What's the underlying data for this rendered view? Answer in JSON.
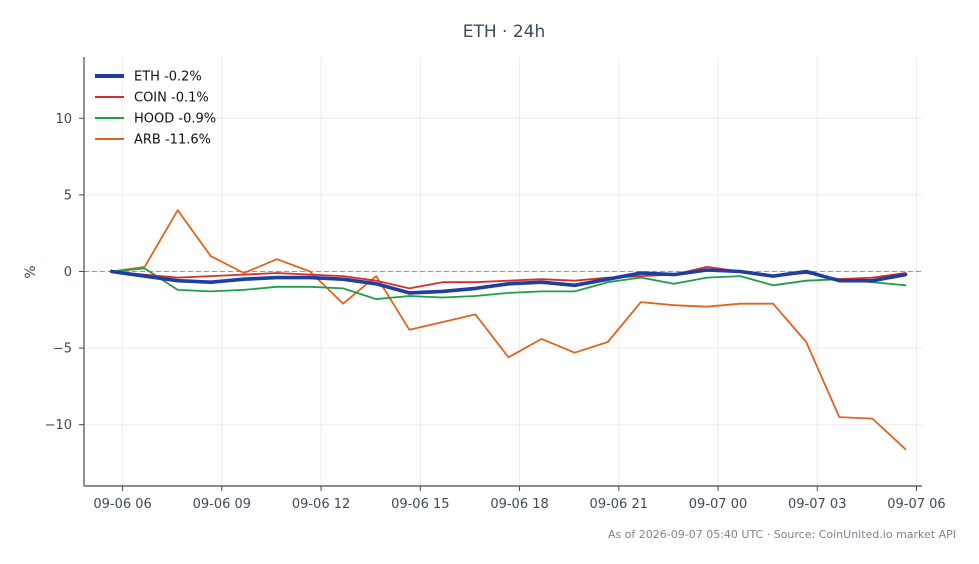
{
  "chart_data": {
    "type": "line",
    "title": "ETH · 24h",
    "ylabel": "%",
    "xlabel": "",
    "xlim": [
      "2026-09-06 04:50",
      "2026-09-07 06:10"
    ],
    "ylim": [
      -14,
      14
    ],
    "x_ticks": [
      "09-06 06",
      "09-06 09",
      "09-06 12",
      "09-06 15",
      "09-06 18",
      "09-06 21",
      "09-07 00",
      "09-07 03",
      "09-07 06"
    ],
    "x_tick_times": [
      "2026-09-06 06:00",
      "2026-09-06 09:00",
      "2026-09-06 12:00",
      "2026-09-06 15:00",
      "2026-09-06 18:00",
      "2026-09-06 21:00",
      "2026-09-07 00:00",
      "2026-09-07 03:00",
      "2026-09-07 06:00"
    ],
    "y_ticks": [
      10,
      5,
      0,
      -5,
      -10
    ],
    "y_tick_labels": [
      "10",
      "5",
      "0",
      "−5",
      "−10"
    ],
    "zero_line": true,
    "grid": true,
    "legend_position": "top-left",
    "x": [
      "2026-09-06 05:40",
      "2026-09-06 06:40",
      "2026-09-06 07:40",
      "2026-09-06 08:40",
      "2026-09-06 09:40",
      "2026-09-06 10:40",
      "2026-09-06 11:40",
      "2026-09-06 12:40",
      "2026-09-06 13:40",
      "2026-09-06 14:40",
      "2026-09-06 15:40",
      "2026-09-06 16:40",
      "2026-09-06 17:40",
      "2026-09-06 18:40",
      "2026-09-06 19:40",
      "2026-09-06 20:40",
      "2026-09-06 21:40",
      "2026-09-06 22:40",
      "2026-09-06 23:40",
      "2026-09-07 00:40",
      "2026-09-07 01:40",
      "2026-09-07 02:40",
      "2026-09-07 03:40",
      "2026-09-07 04:40",
      "2026-09-07 05:40"
    ],
    "series": [
      {
        "name": "ETH -0.2%",
        "color": "#1f3f9e",
        "width": 3.6,
        "values": [
          0,
          -0.3,
          -0.6,
          -0.7,
          -0.5,
          -0.4,
          -0.4,
          -0.5,
          -0.8,
          -1.4,
          -1.3,
          -1.1,
          -0.8,
          -0.7,
          -0.9,
          -0.5,
          -0.1,
          -0.2,
          0.1,
          0.0,
          -0.3,
          0.0,
          -0.6,
          -0.6,
          -0.2
        ]
      },
      {
        "name": "COIN -0.1%",
        "color": "#d62c2c",
        "width": 1.8,
        "values": [
          0,
          -0.2,
          -0.4,
          -0.3,
          -0.2,
          -0.1,
          -0.2,
          -0.3,
          -0.6,
          -1.1,
          -0.7,
          -0.7,
          -0.6,
          -0.5,
          -0.6,
          -0.4,
          -0.3,
          -0.2,
          0.3,
          0.0,
          -0.3,
          -0.1,
          -0.5,
          -0.4,
          -0.1
        ]
      },
      {
        "name": "HOOD -0.9%",
        "color": "#1f9e4a",
        "width": 1.8,
        "values": [
          0,
          0.2,
          -1.2,
          -1.3,
          -1.2,
          -1.0,
          -1.0,
          -1.1,
          -1.8,
          -1.6,
          -1.7,
          -1.6,
          -1.4,
          -1.3,
          -1.3,
          -0.7,
          -0.4,
          -0.8,
          -0.4,
          -0.3,
          -0.9,
          -0.6,
          -0.5,
          -0.7,
          -0.9
        ]
      },
      {
        "name": "ARB -11.6%",
        "color": "#e0641e",
        "width": 1.8,
        "values": [
          0,
          0.3,
          4.0,
          1.0,
          -0.1,
          0.8,
          0.0,
          -2.1,
          -0.3,
          -3.8,
          -3.3,
          -2.8,
          -5.6,
          -4.4,
          -5.3,
          -4.6,
          -2.0,
          -2.2,
          -2.3,
          -2.1,
          -2.1,
          -4.6,
          -9.5,
          -9.6,
          -11.6
        ]
      }
    ]
  },
  "footer": "As of 2026-09-07 05:40 UTC · Source: CoinUnited.io market API"
}
